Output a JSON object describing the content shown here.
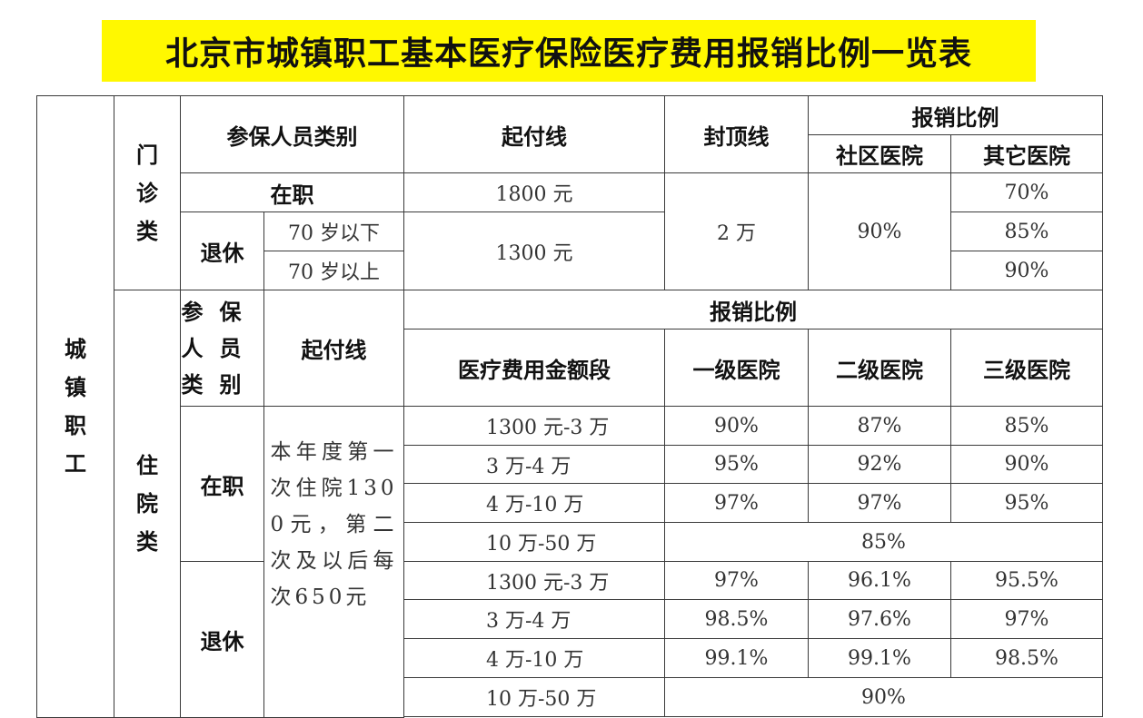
{
  "title": "北京市城镇职工基本医疗保险医疗费用报销比例一览表",
  "category": "城镇职工",
  "outpatient": {
    "label": "门诊类",
    "headers": {
      "member_type": "参保人员类别",
      "deductible": "起付线",
      "cap": "封顶线",
      "reimbursement": "报销比例",
      "community": "社区医院",
      "other": "其它医院"
    },
    "employed": "在职",
    "retired": "退休",
    "under70": "70 岁以下",
    "over70": "70 岁以上",
    "employed_deductible": "1800 元",
    "retired_deductible": "1300 元",
    "cap": "2 万",
    "community_rate": "90%",
    "other_rates": [
      "70%",
      "85%",
      "90%"
    ]
  },
  "inpatient": {
    "label": "住院类",
    "headers": {
      "member_type": "参保人员类别",
      "deductible": "起付线",
      "reimbursement": "报销比例",
      "amount": "医疗费用金额段",
      "level1": "一级医院",
      "level2": "二级医院",
      "level3": "三级医院"
    },
    "deductible_desc": "本年度第一次住院1300元，第二次及以后每次650元",
    "employed": {
      "label": "在职",
      "rows": [
        {
          "amount": "1300 元-3 万",
          "l1": "90%",
          "l2": "87%",
          "l3": "85%"
        },
        {
          "amount": "3 万-4 万",
          "l1": "95%",
          "l2": "92%",
          "l3": "90%"
        },
        {
          "amount": "4 万-10 万",
          "l1": "97%",
          "l2": "97%",
          "l3": "95%"
        }
      ],
      "top": {
        "amount": "10 万-50 万",
        "rate": "85%"
      }
    },
    "retired": {
      "label": "退休",
      "rows": [
        {
          "amount": "1300 元-3 万",
          "l1": "97%",
          "l2": "96.1%",
          "l3": "95.5%"
        },
        {
          "amount": "3 万-4 万",
          "l1": "98.5%",
          "l2": "97.6%",
          "l3": "97%"
        },
        {
          "amount": "4 万-10 万",
          "l1": "99.1%",
          "l2": "99.1%",
          "l3": "98.5%"
        }
      ],
      "top": {
        "amount": "10 万-50 万",
        "rate": "90%"
      }
    }
  }
}
